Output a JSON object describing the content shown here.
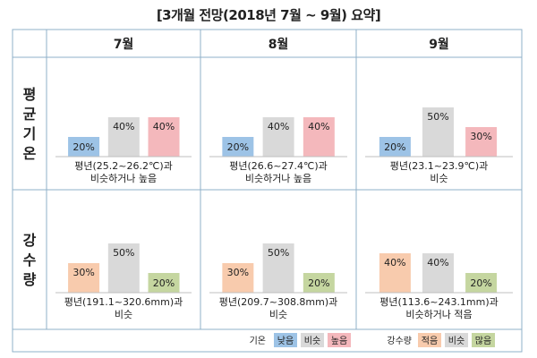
{
  "title": "[3개월 전망(2018년 7월 ~ 9월) 요약]",
  "months": [
    "7월",
    "8월",
    "9월"
  ],
  "row_labels": [
    "평균기온",
    "강수량"
  ],
  "colors": {
    "low": "#9dc3e6",
    "normal": "#d9d9d9",
    "high": "#f4b8bc",
    "precip_low": "#f8cbad",
    "precip_normal": "#d9d9d9",
    "precip_high": "#c5d6a0",
    "grid": "#8fb0c8"
  },
  "legend": {
    "temp_title": "기온",
    "temp_items": [
      "낮음",
      "비슷",
      "높음"
    ],
    "precip_title": "강수량",
    "precip_items": [
      "적음",
      "비슷",
      "많음"
    ]
  },
  "chart_data": {
    "type": "bar",
    "title": "[3개월 전망(2018년 7월 ~ 9월) 요약]",
    "categories": [
      "낮음/적음",
      "비슷",
      "높음/많음"
    ],
    "panels": [
      {
        "row": "평균기온",
        "month": "7월",
        "values": [
          20,
          40,
          40
        ],
        "labels": [
          "20%",
          "40%",
          "40%"
        ],
        "caption": [
          "평년(25.2~26.2℃)과",
          "비슷하거나 높음"
        ]
      },
      {
        "row": "평균기온",
        "month": "8월",
        "values": [
          20,
          40,
          40
        ],
        "labels": [
          "20%",
          "40%",
          "40%"
        ],
        "caption": [
          "평년(26.6~27.4℃)과",
          "비슷하거나 높음"
        ]
      },
      {
        "row": "평균기온",
        "month": "9월",
        "values": [
          20,
          50,
          30
        ],
        "labels": [
          "20%",
          "50%",
          "30%"
        ],
        "caption": [
          "평년(23.1~23.9℃)과",
          "비슷"
        ]
      },
      {
        "row": "강수량",
        "month": "7월",
        "values": [
          30,
          50,
          20
        ],
        "labels": [
          "30%",
          "50%",
          "20%"
        ],
        "caption": [
          "평년(191.1~320.6mm)과",
          "비슷"
        ]
      },
      {
        "row": "강수량",
        "month": "8월",
        "values": [
          30,
          50,
          20
        ],
        "labels": [
          "30%",
          "50%",
          "20%"
        ],
        "caption": [
          "평년(209.7~308.8mm)과",
          "비슷"
        ]
      },
      {
        "row": "강수량",
        "month": "9월",
        "values": [
          40,
          40,
          20
        ],
        "labels": [
          "40%",
          "40%",
          "20%"
        ],
        "caption": [
          "평년(113.6~243.1mm)과",
          "비슷하거나 적음"
        ]
      }
    ]
  }
}
